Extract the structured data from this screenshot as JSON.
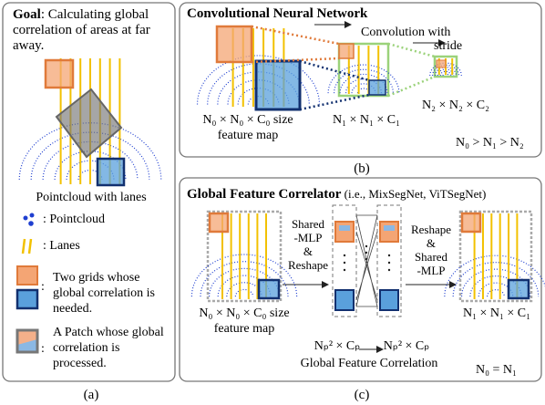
{
  "panel_a": {
    "goal_label": "Goal",
    "goal_text": ": Calculating global correlation of areas at far away.",
    "image_caption": "Pointcloud with lanes",
    "legend": [
      {
        "label": ": Pointcloud"
      },
      {
        "label": ": Lanes"
      },
      {
        "separator": ":",
        "label": "Two grids whose global correlation is needed."
      },
      {
        "separator": ":",
        "label": "A Patch whose global correlation is processed."
      }
    ],
    "caption": "(a)"
  },
  "panel_b": {
    "title": "Convolutional Neural Network",
    "operation_line1": "Convolution with",
    "operation_line2": "stride",
    "map0_line1": "N₀ × N₀ × C₀ size",
    "map0_line2": "feature map",
    "map1": "N₁ × N₁ × C₁",
    "map2": "N₂ × N₂ × C₂",
    "relation": "N₀ > N₁ > N₂",
    "caption": "(b)"
  },
  "panel_c": {
    "title": "Global Feature Correlator",
    "subtitle": " (i.e., MixSegNet, ViTSegNet)",
    "step1": [
      "Shared",
      "-MLP",
      "&",
      "Reshape"
    ],
    "step2": [
      "Reshape",
      "&",
      "Shared",
      "-MLP"
    ],
    "map0_line1": "N₀ × N₀ × C₀ size",
    "map0_line2": "feature map",
    "patches_in": "Nₚ² × Cₚ",
    "patches_out": "Nₚ² × Cₚ",
    "correlation": "Global Feature Correlation",
    "map1": "N₁ × N₁ × C₁",
    "relation": "N₀ = N₁",
    "caption": "(c)"
  }
}
